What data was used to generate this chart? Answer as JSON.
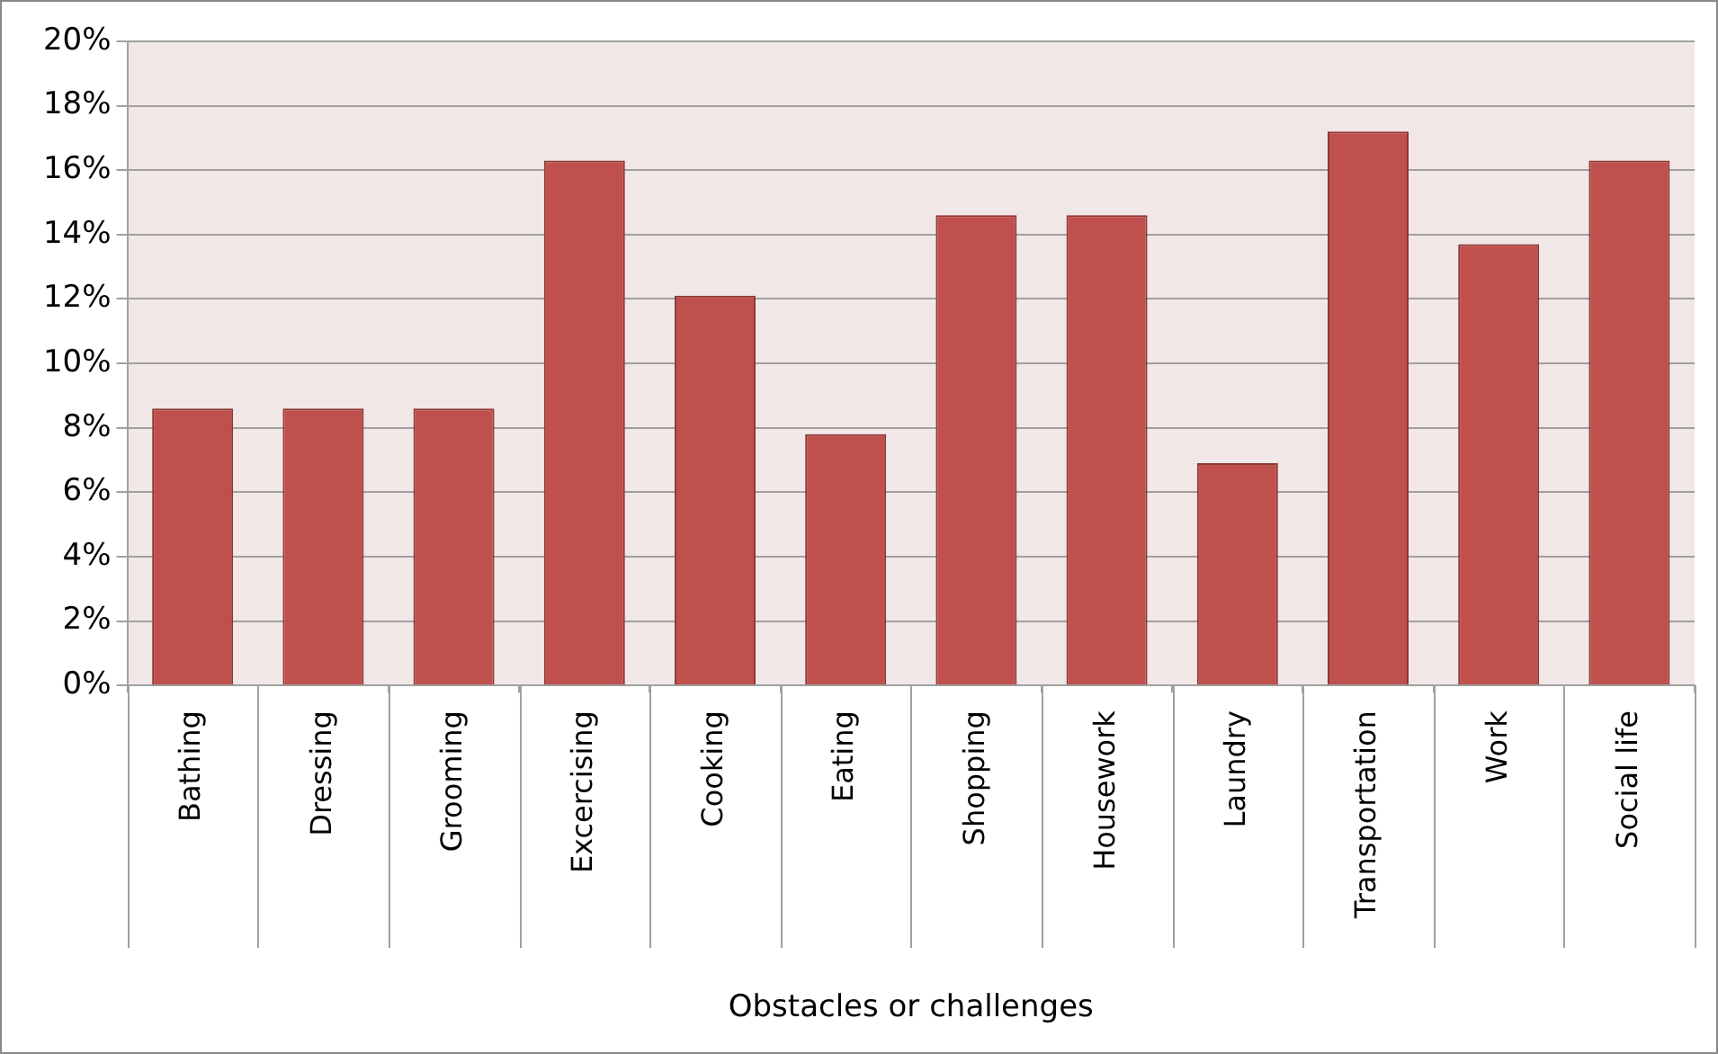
{
  "chart_data": {
    "type": "bar",
    "xlabel": "Obstacles or challenges",
    "categories": [
      "Bathing",
      "Dressing",
      "Grooming",
      "Excercising",
      "Cooking",
      "Eating",
      "Shopping",
      "Housework",
      "Laundry",
      "Transportation",
      "Work",
      "Social life"
    ],
    "values": [
      8.6,
      8.6,
      8.6,
      16.3,
      12.1,
      7.8,
      14.6,
      14.6,
      6.9,
      17.2,
      13.7,
      16.3
    ],
    "color": "#c0504d",
    "ylim": [
      0,
      20
    ],
    "yticks": [
      {
        "value": 0,
        "label": "0%"
      },
      {
        "value": 2,
        "label": "2%"
      },
      {
        "value": 4,
        "label": "4%"
      },
      {
        "value": 6,
        "label": "6%"
      },
      {
        "value": 8,
        "label": "8%"
      },
      {
        "value": 10,
        "label": "10%"
      },
      {
        "value": 12,
        "label": "12%"
      },
      {
        "value": 14,
        "label": "14%"
      },
      {
        "value": 16,
        "label": "16%"
      },
      {
        "value": 18,
        "label": "18%"
      },
      {
        "value": 20,
        "label": "20%"
      }
    ],
    "grid": "y",
    "legend": false
  }
}
